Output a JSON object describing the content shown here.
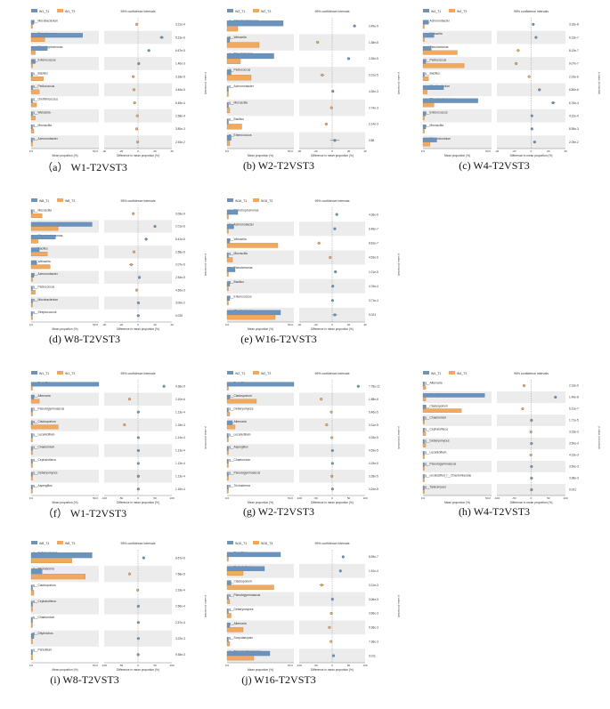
{
  "colors": {
    "t1": "#6a93be",
    "t3": "#f0a95e",
    "dot": "#9aa36b",
    "band": "#ececec",
    "guide": "#999999"
  },
  "axis_labels": {
    "prop": "Mean proportion (%)",
    "diff": "Difference in mean proportion (%)",
    "ci": "95% confidence intervals",
    "pcorr": "p-value (corrected)"
  },
  "panels": [
    {
      "caption": "（a） W1-T2VST3",
      "legend": [
        "W1_T1",
        "W1_T3"
      ],
      "prop_ticks": [
        "0.0",
        "50.0"
      ],
      "diff_ticks": [
        "-40",
        "-20",
        "0",
        "20",
        "40"
      ],
      "chart_data": {
        "type": "bar",
        "taxa": [
          "g__Microbacterium",
          "g__Pseudomonas",
          "g__Stenotrophomonas",
          "g__Enterococcus",
          "g__Bacillus",
          "g__Pediococcus",
          "g__Ornithinicoccus",
          "g__Weissella",
          "g__Microscilla",
          "g__Achromobacter"
        ],
        "t1": [
          2,
          38,
          12,
          3,
          1,
          1,
          1,
          1,
          1,
          1
        ],
        "t3": [
          1,
          10,
          3,
          1,
          9,
          6,
          4,
          3,
          2,
          1
        ],
        "diff": [
          -2,
          35,
          16,
          1,
          -7,
          -6,
          -5,
          -1,
          -2,
          -0.5
        ],
        "ci": [
          1.5,
          3,
          2,
          1.5,
          2,
          2,
          2,
          1.5,
          1.2,
          0.5
        ],
        "pvalues": [
          "3.21e-4",
          "5.13e-6",
          "6.67e-5",
          "1.46e-3",
          "3.18e-5",
          "4.46e-5",
          "6.45e-4",
          "2.58e-4",
          "3.80e-3",
          "2.54e-2"
        ],
        "xlim": [
          -50,
          50
        ],
        "ylabel": "p-value (corrected)"
      }
    },
    {
      "caption": "(b) W2-T2VST3",
      "legend": [
        "W2_T1",
        "W2_T3"
      ],
      "prop_ticks": [
        "0.0",
        "50.0"
      ],
      "diff_ticks": [
        "-40",
        "-20",
        "0",
        "20",
        "40"
      ],
      "chart_data": {
        "type": "bar",
        "taxa": [
          "g__Stenotrophomonas",
          "g__Weissella",
          "g__Pseudomonas",
          "g__Pediococcus",
          "g__Achromobacter",
          "g__Microscilla",
          "g__Bacillus",
          "g__Enterococcus"
        ],
        "t1": [
          42,
          2,
          35,
          3,
          1,
          1,
          1,
          3
        ],
        "t3": [
          8,
          24,
          10,
          18,
          1,
          2,
          11,
          2
        ],
        "diff": [
          34,
          -22,
          25,
          -15,
          1,
          -1,
          -9,
          4
        ],
        "ci": [
          2,
          2,
          2,
          3,
          1,
          1,
          2,
          7
        ],
        "pvalues": [
          "3.49e-9",
          "1.38e-8",
          "2.30e-5",
          "3.31e-5",
          "4.30e-3",
          "2.74e-3",
          "2.14e-3",
          "0.88"
        ],
        "xlim": [
          -50,
          50
        ],
        "ylabel": "p-value (corrected)"
      }
    },
    {
      "caption": "(c) W4-T2VST3",
      "legend": [
        "W4_T1",
        "W4_T3"
      ],
      "prop_ticks": [
        "0.0",
        "50.0"
      ],
      "diff_ticks": [
        "-40",
        "-20",
        "0",
        "20",
        "40"
      ],
      "chart_data": {
        "type": "bar",
        "taxa": [
          "g__Achromobacter",
          "g__Weissella",
          "g__Pseudomonas",
          "g__Pediococcus",
          "g__Bacillus",
          "g__Microbacterium",
          "g__Stenotrophomonas",
          "g__Enterococcus",
          "g__Microscilla",
          "g__Planomicrobium"
        ],
        "t1": [
          4,
          8,
          6,
          2,
          1,
          15,
          40,
          2,
          2,
          10
        ],
        "t3": [
          1,
          1,
          25,
          30,
          4,
          3,
          8,
          1,
          1,
          5
        ],
        "diff": [
          3,
          7,
          -19,
          -22,
          -3,
          12,
          32,
          1,
          1,
          5
        ],
        "ci": [
          1,
          1,
          2,
          2,
          1,
          2,
          3,
          1,
          1,
          2
        ],
        "pvalues": [
          "3.33e-8",
          "6.13e-7",
          "8.13e-7",
          "9.07e-7",
          "2.23e-6",
          "6.80e-6",
          "6.76e-4",
          "4.22e-4",
          "8.55e-3",
          "2.09e-2"
        ],
        "xlim": [
          -50,
          50
        ],
        "ylabel": "p-value (corrected)"
      }
    },
    {
      "caption": "(d) W8-T2VST3",
      "legend": [
        "W8_T1",
        "W8_T3"
      ],
      "prop_ticks": [
        "0.0",
        "50.0"
      ],
      "diff_ticks": [
        "-40",
        "-20",
        "0",
        "20",
        "40"
      ],
      "chart_data": {
        "type": "bar",
        "taxa": [
          "g__Microscilla",
          "g__Pseudomonas",
          "g__Stenotrophomonas",
          "g__Bacillus",
          "g__Weissella",
          "g__Achromobacter",
          "g__Pediococcus",
          "g__Microbacterium",
          "g__Streptococcus"
        ],
        "t1": [
          1,
          45,
          18,
          6,
          4,
          2,
          1,
          1,
          1
        ],
        "t3": [
          8,
          20,
          5,
          12,
          14,
          1,
          3,
          1,
          1
        ],
        "diff": [
          -7,
          25,
          12,
          -6,
          -10,
          2,
          -2,
          0.5,
          0.3
        ],
        "ci": [
          1,
          1,
          2,
          2,
          3,
          1,
          1,
          0.5,
          0.5
        ],
        "pvalues": [
          "3.09e-9",
          "2.01e-6",
          "6.41e-6",
          "2.58e-6",
          "2.07e-6",
          "2.54e-5",
          "4.50e-3",
          "3.00e-2",
          "0.026"
        ],
        "xlim": [
          -50,
          50
        ],
        "ylabel": "p-value (corrected)"
      }
    },
    {
      "caption": "(e) W16-T2VST3",
      "legend": [
        "W16_T1",
        "W16_T3"
      ],
      "prop_ticks": [
        "0.0",
        "50.0"
      ],
      "diff_ticks": [
        "-40",
        "-20",
        "0",
        "20",
        "40"
      ],
      "chart_data": {
        "type": "bar",
        "taxa": [
          "g__Stenotrophomonas",
          "g__Achromobacter",
          "g__Weissella",
          "g__Microscilla",
          "g__Pseudomonas",
          "g__Bacillus",
          "g__Enterococcus",
          "g__Microbacterium"
        ],
        "t1": [
          8,
          5,
          2,
          1,
          6,
          2,
          2,
          40
        ],
        "t3": [
          1,
          1,
          38,
          4,
          1,
          1,
          1,
          36
        ],
        "diff": [
          7,
          4,
          -20,
          -3,
          5,
          1,
          0.5,
          4
        ],
        "ci": [
          1,
          1,
          2,
          1,
          1,
          0.5,
          0.5,
          4
        ],
        "pvalues": [
          "4.36e-9",
          "6.46e-7",
          "8.81e-7",
          "4.53e-6",
          "1.01e-5",
          "4.76e-4",
          "3.71e-4",
          "0.024"
        ],
        "xlim": [
          -50,
          50
        ],
        "ylabel": "p-value (corrected)"
      }
    },
    {
      "caption": "（f） W1-T2VST3",
      "legend": [
        "W1_T1",
        "W1_T3"
      ],
      "prop_ticks": [
        "0.0",
        "50.0"
      ],
      "diff_ticks": [
        "-100",
        "-50",
        "0",
        "50",
        "100"
      ],
      "chart_data": {
        "type": "bar",
        "taxa": [
          "g__Penicillium",
          "g__Alternaria",
          "g__Pseudogymnoascus",
          "g__Cladosporium",
          "g__Lecanicillium",
          "g__Chaetomium",
          "g__Cephalotheca",
          "g__Debaryomyces",
          "g__Aspergillus"
        ],
        "t1": [
          50,
          2,
          1,
          1,
          1,
          1,
          1,
          1,
          1
        ],
        "t3": [
          1,
          6,
          1,
          20,
          1,
          1,
          1,
          1,
          1
        ],
        "diff": [
          92,
          -30,
          1,
          -48,
          1,
          1,
          1,
          1,
          1
        ],
        "ci": [
          3,
          3,
          1,
          3,
          1,
          1,
          1,
          1,
          1
        ],
        "pvalues": [
          "9.36e-9",
          "2.10e-6",
          "1.13e-4",
          "1.33e-4",
          "1.14e-4",
          "1.13e-4",
          "1.13e-4",
          "1.13e-4",
          "1.16e-4"
        ],
        "xlim": [
          -120,
          120
        ],
        "ylabel": "p-value (corrected)"
      }
    },
    {
      "caption": "(g) W2-T2VST3",
      "legend": [
        "W2_T1",
        "W2_T3"
      ],
      "prop_ticks": [
        "0.0",
        "50.0"
      ],
      "diff_ticks": [
        "-100",
        "-50",
        "0",
        "50",
        "100"
      ],
      "chart_data": {
        "type": "bar",
        "taxa": [
          "g__Penicillium",
          "g__Cladosporium",
          "g__Debaryomyces",
          "g__Alternaria",
          "g__Lecanicillium",
          "g__Aspergillus",
          "g__Chaetomium",
          "g__Pseudogymnoascus",
          "g__Trichoderma"
        ],
        "t1": [
          50,
          2,
          1,
          4,
          1,
          1,
          1,
          1,
          1
        ],
        "t3": [
          1,
          22,
          2,
          6,
          1,
          1,
          1,
          1,
          1
        ],
        "diff": [
          95,
          -40,
          -3,
          -20,
          -1,
          1,
          1,
          -1,
          1
        ],
        "ci": [
          3,
          3,
          1,
          2,
          1,
          1,
          1,
          1,
          1
        ],
        "pvalues": [
          "7.78e-11",
          "1.88e-8",
          "5.46e-5",
          "3.31e-5",
          "4.15e-5",
          "4.53e-5",
          "4.15e-5",
          "3.28e-5",
          "3.24e-5"
        ],
        "xlim": [
          -120,
          120
        ],
        "ylabel": "p-value (corrected)"
      }
    },
    {
      "caption": "(h) W4-T2VST3",
      "legend": [
        "W4_T1",
        "W4_T3"
      ],
      "prop_ticks": [
        "0.0",
        "50.0"
      ],
      "diff_ticks": [
        "-100",
        "-50",
        "0",
        "50",
        "100"
      ],
      "chart_data": {
        "type": "bar",
        "taxa": [
          "g__Alternaria",
          "g__Penicillium",
          "g__Cladosporium",
          "g__Chaetomium",
          "g__Cephalotheca",
          "g__Debaryomyces",
          "g__Lecanicillium",
          "g__Pseudogymnoascus",
          "g__unclassified_f__Chaetomiaceae",
          "g__Talaromyces"
        ],
        "t1": [
          1,
          45,
          2,
          1,
          1,
          1,
          1,
          1,
          1,
          1
        ],
        "t3": [
          2,
          2,
          28,
          1,
          2,
          2,
          1,
          1,
          1,
          1
        ],
        "diff": [
          -25,
          85,
          -30,
          1,
          -1,
          1,
          -1,
          1,
          1,
          1
        ],
        "ci": [
          3,
          4,
          3,
          1,
          1,
          1,
          1,
          1,
          1,
          1
        ],
        "pvalues": [
          "2.13e-9",
          "1.49e-8",
          "6.21e-7",
          "1.71e-5",
          "3.23e-3",
          "3.50e-3",
          "4.13e-3",
          "3.50e-3",
          "3.38e-3",
          "0.031"
        ],
        "xlim": [
          -120,
          120
        ],
        "ylabel": "p-value (corrected)"
      }
    },
    {
      "caption": "(i) W8-T2VST3",
      "legend": [
        "W8_T1",
        "W8_T3"
      ],
      "prop_ticks": [
        "0.0",
        "50.0"
      ],
      "diff_ticks": [
        "-100",
        "-50",
        "0",
        "50",
        "100"
      ],
      "chart_data": {
        "type": "bar",
        "taxa": [
          "g__Debaryomyces",
          "g__Trichoderma",
          "g__Cladosporium",
          "g__Cephalotheca",
          "g__Chaetomium",
          "g__Ditylenchus",
          "g__Penicillium"
        ],
        "t1": [
          45,
          8,
          1,
          1,
          1,
          2,
          1
        ],
        "t3": [
          30,
          40,
          2,
          1,
          1,
          1,
          1
        ],
        "diff": [
          20,
          -30,
          -1,
          1,
          1,
          1,
          0.5
        ],
        "ci": [
          3,
          3,
          1,
          1,
          1,
          1,
          0.5
        ],
        "pvalues": [
          "8.67e-6",
          "7.68e-5",
          "2.33e-4",
          "2.56e-4",
          "2.57e-4",
          "3.22e-3",
          "9.36e-3"
        ],
        "xlim": [
          -120,
          120
        ],
        "ylabel": "p-value (corrected)"
      }
    },
    {
      "caption": "(j) W16-T2VST3",
      "legend": [
        "W16_T1",
        "W16_T3"
      ],
      "prop_ticks": [
        "0.0",
        "50.0"
      ],
      "diff_ticks": [
        "-100",
        "-50",
        "0",
        "50",
        "100"
      ],
      "chart_data": {
        "type": "bar",
        "taxa": [
          "g__Penicillium",
          "g__Cephalotheca",
          "g__Cladosporium",
          "g__Pseudogymnoascus",
          "g__Debaryomyces",
          "g__Alternaria",
          "g__Scopulariopsis",
          "g__Zygosaccharomyces"
        ],
        "t1": [
          40,
          28,
          3,
          1,
          1,
          2,
          1,
          32
        ],
        "t3": [
          1,
          12,
          35,
          2,
          3,
          12,
          2,
          20
        ],
        "diff": [
          40,
          30,
          -38,
          1,
          -3,
          -10,
          -4,
          5
        ],
        "ci": [
          2,
          2,
          8,
          1,
          1,
          2,
          1,
          4
        ],
        "pvalues": [
          "8.59e-7",
          "1.51e-4",
          "3.21e-3",
          "3.06e-3",
          "3.66e-3",
          "5.36e-3",
          "7.36e-3",
          "0.011"
        ],
        "xlim": [
          -120,
          120
        ],
        "ylabel": "p-value (corrected)"
      }
    }
  ]
}
